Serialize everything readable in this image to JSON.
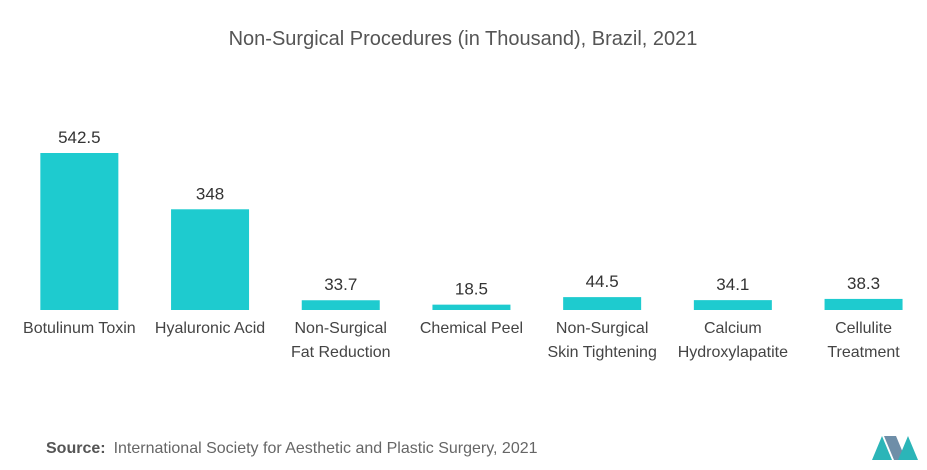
{
  "chart_data": {
    "type": "bar",
    "title": "Non-Surgical Procedures (in Thousand), Brazil, 2021",
    "categories": [
      "Botulinum Toxin",
      "Hyaluronic Acid",
      "Non-Surgical Fat Reduction",
      "Chemical Peel",
      "Non-Surgical Skin Tightening",
      "Calcium Hydroxylapatite",
      "Cellulite Treatment"
    ],
    "values": [
      542.5,
      348,
      33.7,
      18.5,
      44.5,
      34.1,
      38.3
    ],
    "color": "#1ecbcf"
  },
  "source": {
    "label": "Source:",
    "text": "International Society for Aesthetic and Plastic Surgery, 2021"
  }
}
